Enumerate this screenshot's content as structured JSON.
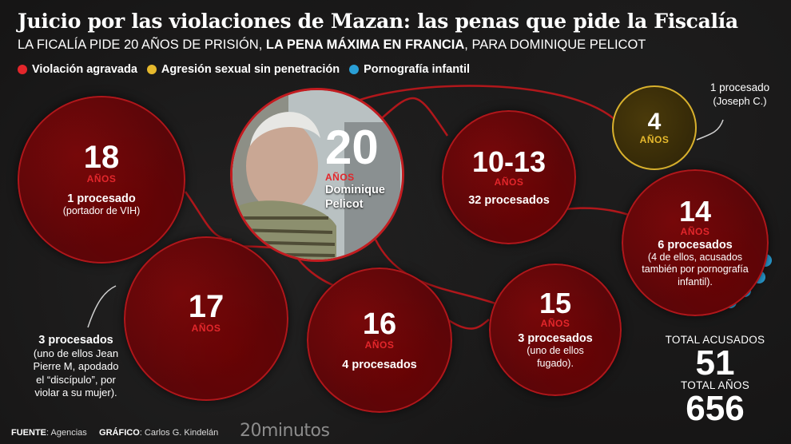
{
  "header": {
    "title": "Juicio por las violaciones de Mazan: las penas que pide la Fiscalía",
    "subtitle_pre": "LA FICALÍA PIDE 20 AÑOS DE PRISIÓN, ",
    "subtitle_bold": "LA PENA MÁXIMA EN FRANCIA",
    "subtitle_post": ", PARA DOMINIQUE PELICOT"
  },
  "legend": [
    {
      "label": "Violación agravada",
      "color": "#e3262b"
    },
    {
      "label": "Agresión sexual sin penetración",
      "color": "#e6b92d"
    },
    {
      "label": "Pornografía infantil",
      "color": "#2a9fd6"
    }
  ],
  "anos_label": "AÑOS",
  "circles": {
    "c18": {
      "years": "18",
      "processed": "1 procesado",
      "note": "(portador de VIH)"
    },
    "c20": {
      "years": "20",
      "name1": "Dominique",
      "name2": "Pelicot"
    },
    "c1013": {
      "years": "10-13",
      "processed": "32 procesados"
    },
    "c4": {
      "years": "4"
    },
    "c14": {
      "years": "14",
      "processed": "6 procesados",
      "note1": "(4 de ellos, acusados",
      "note2": "también por pornografía",
      "note3": "infantil)."
    },
    "c17": {
      "years": "17"
    },
    "c16": {
      "years": "16",
      "processed": "4 procesados"
    },
    "c15": {
      "years": "15",
      "processed": "3 procesados",
      "note1": "(uno de ellos",
      "note2": "fugado)."
    }
  },
  "side_notes": {
    "c4": {
      "line1": "1 procesado",
      "line2": "(Joseph C.)"
    },
    "c17": {
      "line1": "3 procesados",
      "line2": "(uno de ellos Jean",
      "line3": "Pierre M, apodado",
      "line4": "el “discípulo”, por",
      "line5": "violar a su mujer)."
    }
  },
  "totals": {
    "accused_label": "TOTAL ACUSADOS",
    "accused_value": "51",
    "years_label": "TOTAL AÑOS",
    "years_value": "656"
  },
  "footer": {
    "source_label": "FUENTE",
    "source_value": ": Agencias",
    "graphic_label": "GRÁFICO",
    "graphic_value": ": Carlos G. Kindelán",
    "brand": "20minutos"
  }
}
